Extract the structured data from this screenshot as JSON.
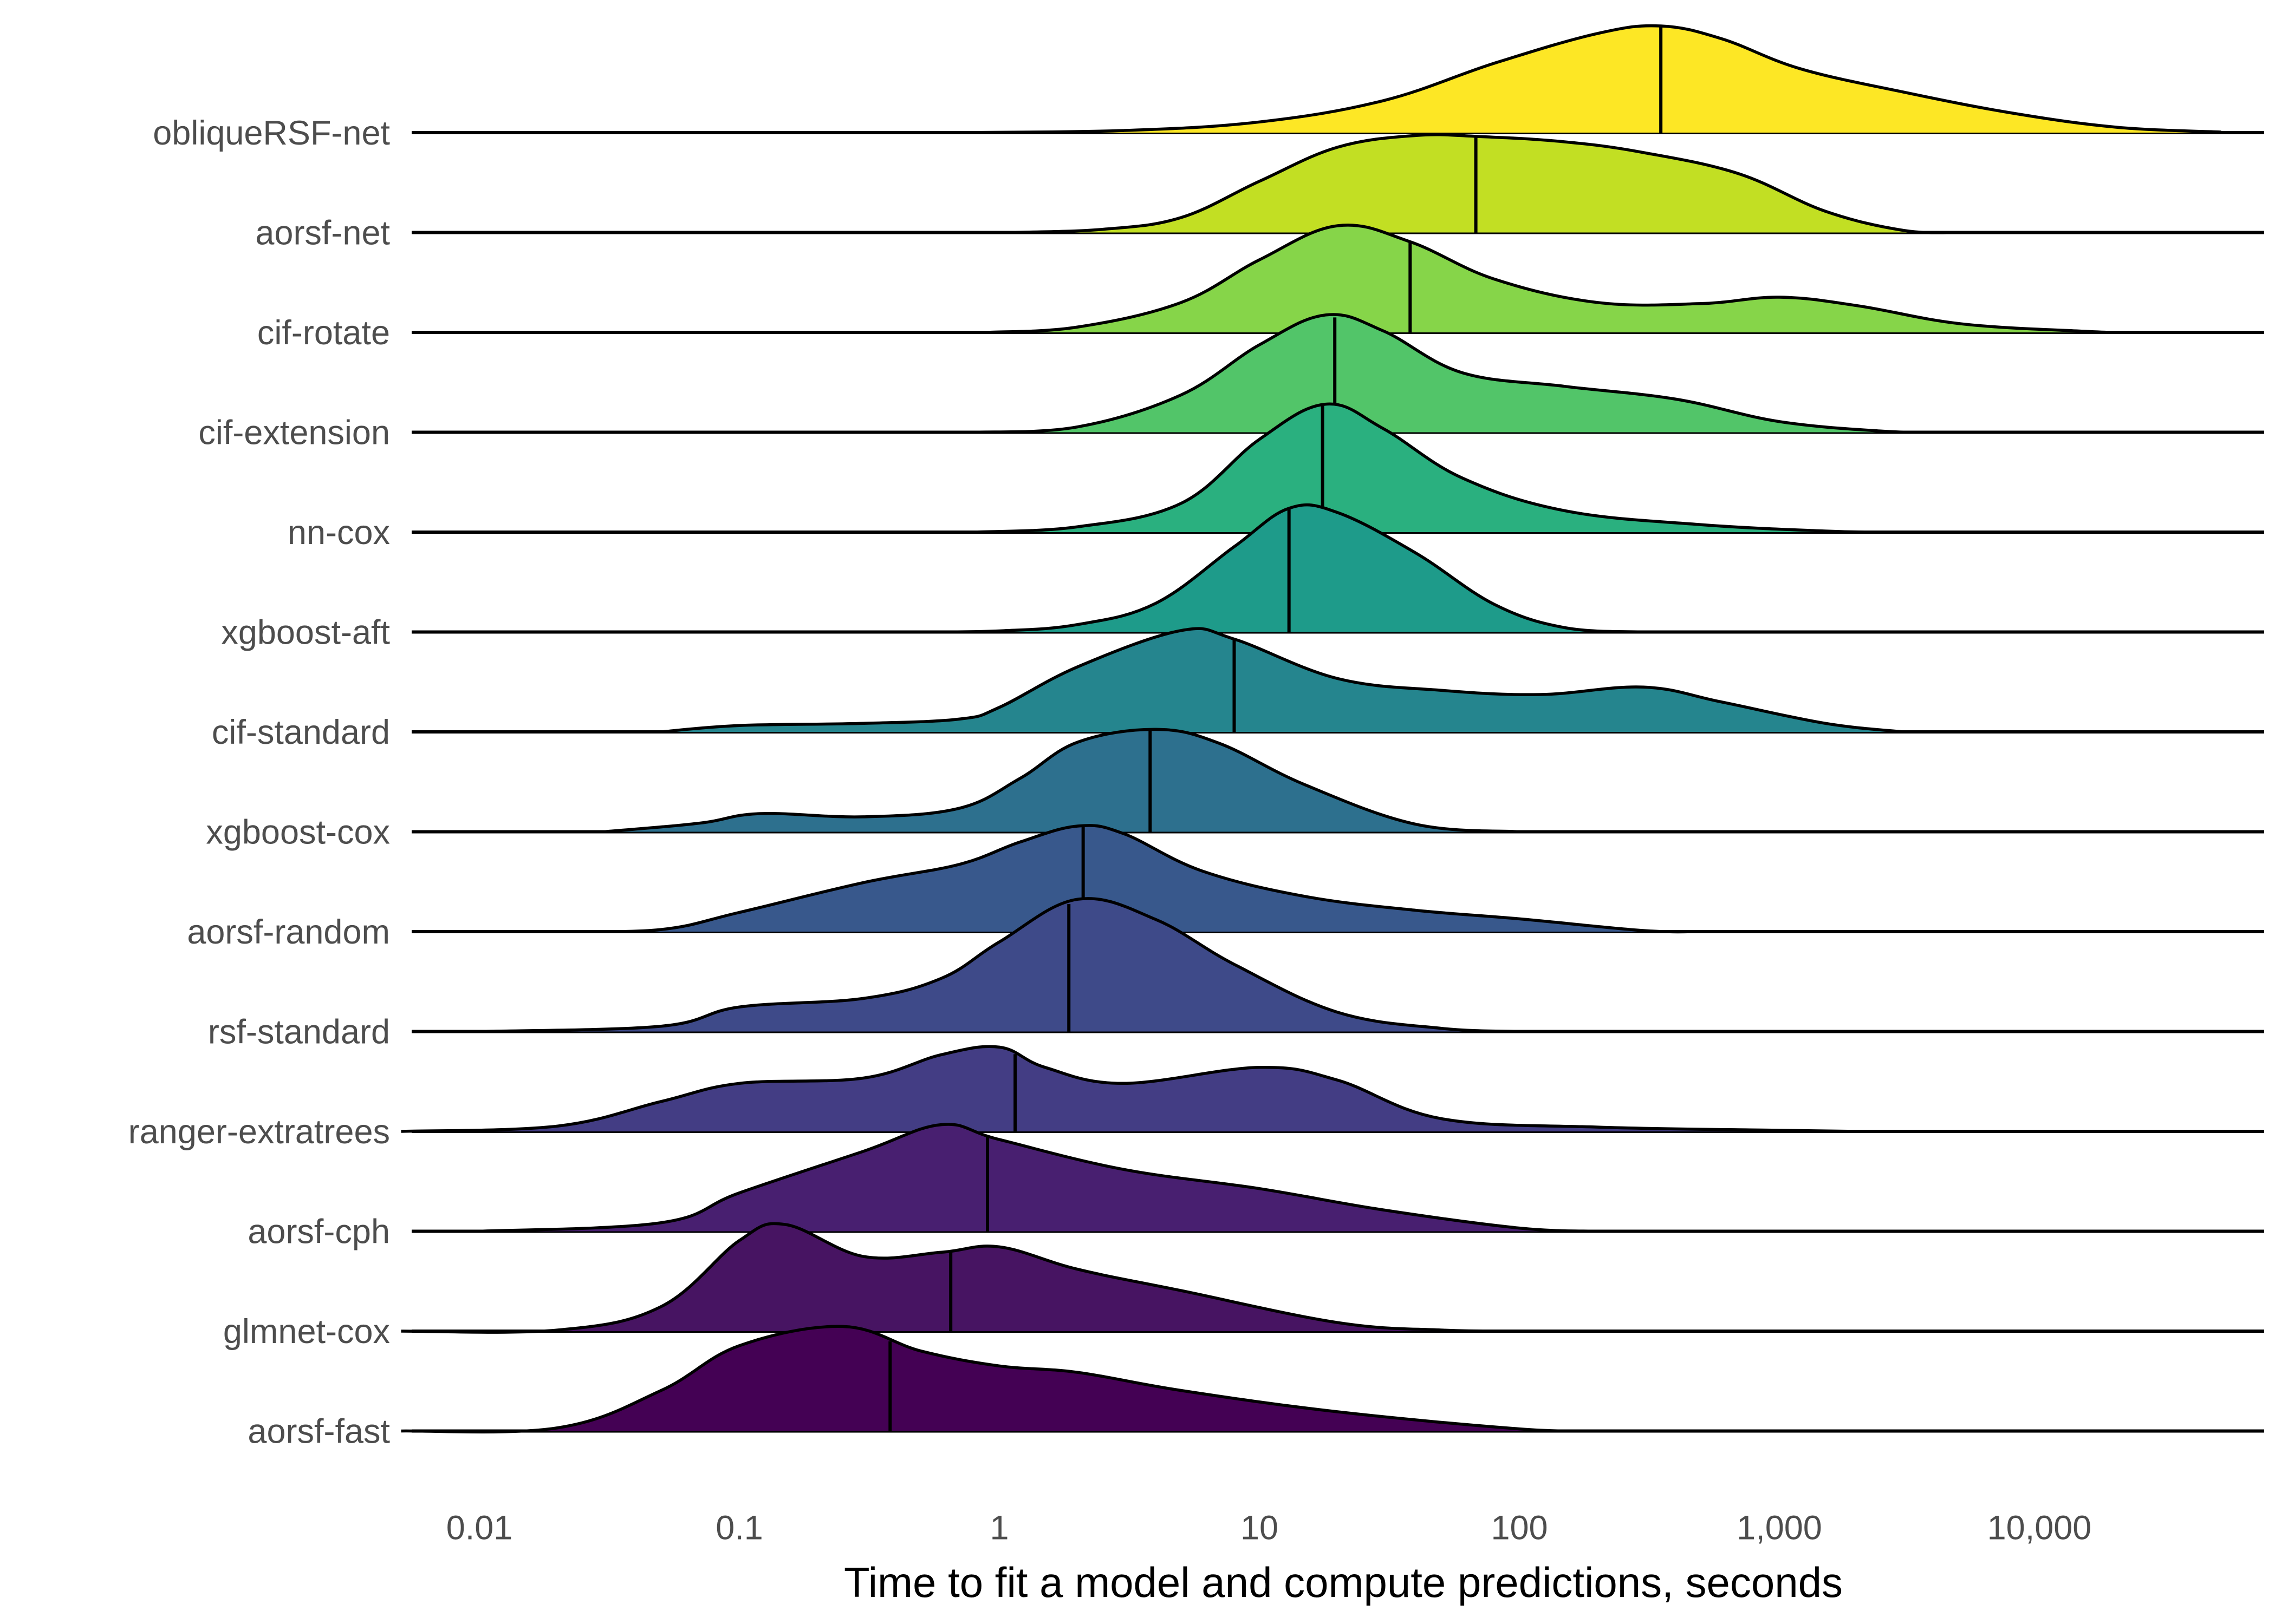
{
  "chart_data": {
    "type": "ridgeline",
    "title": "",
    "xlabel": "Time to fit a model and compute predictions, seconds",
    "ylabel": "",
    "x_scale": "log10",
    "xlim": [
      0.0045,
      70000
    ],
    "x_ticks": [
      {
        "value": 0.01,
        "label": "0.01"
      },
      {
        "value": 0.1,
        "label": "0.1"
      },
      {
        "value": 1,
        "label": "1"
      },
      {
        "value": 10,
        "label": "10"
      },
      {
        "value": 100,
        "label": "100"
      },
      {
        "value": 1000,
        "label": "1,000"
      },
      {
        "value": 10000,
        "label": "10,000"
      }
    ],
    "grid": false,
    "legend": "none",
    "series": [
      {
        "name": "obliqueRSF-net",
        "color": "#FDE725",
        "median": 350,
        "density": [
          [
            0.7,
            0
          ],
          [
            3,
            0.02
          ],
          [
            10,
            0.1
          ],
          [
            30,
            0.3
          ],
          [
            80,
            0.65
          ],
          [
            200,
            0.93
          ],
          [
            350,
            1.0
          ],
          [
            600,
            0.88
          ],
          [
            1200,
            0.6
          ],
          [
            3000,
            0.38
          ],
          [
            8000,
            0.18
          ],
          [
            20000,
            0.05
          ],
          [
            50000,
            0.005
          ]
        ]
      },
      {
        "name": "aorsf-net",
        "color": "#C2DF23",
        "median": 68,
        "density": [
          [
            1.1,
            0
          ],
          [
            2.5,
            0.03
          ],
          [
            5,
            0.14
          ],
          [
            10,
            0.48
          ],
          [
            20,
            0.8
          ],
          [
            40,
            0.91
          ],
          [
            70,
            0.9
          ],
          [
            150,
            0.85
          ],
          [
            300,
            0.75
          ],
          [
            700,
            0.55
          ],
          [
            1500,
            0.2
          ],
          [
            3000,
            0.02
          ],
          [
            5000,
            0
          ]
        ]
      },
      {
        "name": "cif-rotate",
        "color": "#86D549",
        "median": 38,
        "density": [
          [
            0.9,
            0
          ],
          [
            2,
            0.05
          ],
          [
            5,
            0.28
          ],
          [
            10,
            0.68
          ],
          [
            20,
            1.0
          ],
          [
            38,
            0.85
          ],
          [
            80,
            0.5
          ],
          [
            200,
            0.28
          ],
          [
            500,
            0.27
          ],
          [
            1000,
            0.33
          ],
          [
            2000,
            0.25
          ],
          [
            5000,
            0.08
          ],
          [
            15000,
            0.01
          ],
          [
            20000,
            0
          ]
        ]
      },
      {
        "name": "cif-extension",
        "color": "#52C569",
        "median": 19.5,
        "density": [
          [
            0.8,
            0
          ],
          [
            2,
            0.05
          ],
          [
            5,
            0.35
          ],
          [
            10,
            0.82
          ],
          [
            18,
            1.1
          ],
          [
            30,
            0.95
          ],
          [
            60,
            0.56
          ],
          [
            150,
            0.43
          ],
          [
            400,
            0.31
          ],
          [
            1000,
            0.1
          ],
          [
            2500,
            0.01
          ],
          [
            4000,
            0
          ]
        ]
      },
      {
        "name": "nn-cox",
        "color": "#2AB07F",
        "median": 17.5,
        "density": [
          [
            0.8,
            0
          ],
          [
            2,
            0.05
          ],
          [
            5,
            0.27
          ],
          [
            10,
            0.87
          ],
          [
            18,
            1.2
          ],
          [
            30,
            0.97
          ],
          [
            60,
            0.51
          ],
          [
            150,
            0.2
          ],
          [
            500,
            0.07
          ],
          [
            1500,
            0.01
          ],
          [
            2500,
            0
          ]
        ]
      },
      {
        "name": "xgboost-aft",
        "color": "#1E9B8A",
        "median": 13,
        "density": [
          [
            0.5,
            0
          ],
          [
            1,
            0.01
          ],
          [
            2,
            0.07
          ],
          [
            4,
            0.27
          ],
          [
            8,
            0.8
          ],
          [
            13,
            1.16
          ],
          [
            20,
            1.12
          ],
          [
            40,
            0.74
          ],
          [
            80,
            0.26
          ],
          [
            150,
            0.04
          ],
          [
            300,
            0
          ]
        ]
      },
      {
        "name": "cif-standard",
        "color": "#25858E",
        "median": 8,
        "density": [
          [
            0.05,
            0
          ],
          [
            0.1,
            0.06
          ],
          [
            0.3,
            0.08
          ],
          [
            0.7,
            0.12
          ],
          [
            1,
            0.23
          ],
          [
            2,
            0.61
          ],
          [
            5,
            0.95
          ],
          [
            8,
            0.87
          ],
          [
            20,
            0.5
          ],
          [
            50,
            0.39
          ],
          [
            120,
            0.35
          ],
          [
            300,
            0.42
          ],
          [
            600,
            0.28
          ],
          [
            1500,
            0.08
          ],
          [
            3000,
            0
          ]
        ]
      },
      {
        "name": "xgboost-cox",
        "color": "#2D708E",
        "median": 3.8,
        "density": [
          [
            0.03,
            0
          ],
          [
            0.07,
            0.08
          ],
          [
            0.12,
            0.17
          ],
          [
            0.3,
            0.14
          ],
          [
            0.7,
            0.22
          ],
          [
            1.2,
            0.5
          ],
          [
            2,
            0.84
          ],
          [
            4,
            0.96
          ],
          [
            7,
            0.83
          ],
          [
            15,
            0.44
          ],
          [
            40,
            0.07
          ],
          [
            100,
            0
          ]
        ]
      },
      {
        "name": "aorsf-random",
        "color": "#38588C",
        "median": 2.1,
        "density": [
          [
            0.02,
            0
          ],
          [
            0.05,
            0.02
          ],
          [
            0.1,
            0.18
          ],
          [
            0.3,
            0.46
          ],
          [
            0.7,
            0.63
          ],
          [
            1.2,
            0.84
          ],
          [
            2,
            0.99
          ],
          [
            3,
            0.92
          ],
          [
            6,
            0.57
          ],
          [
            15,
            0.33
          ],
          [
            40,
            0.2
          ],
          [
            100,
            0.12
          ],
          [
            300,
            0.01
          ],
          [
            500,
            0
          ]
        ]
      },
      {
        "name": "rsf-standard",
        "color": "#3E4A89",
        "median": 1.85,
        "density": [
          [
            0.01,
            0
          ],
          [
            0.05,
            0.05
          ],
          [
            0.1,
            0.23
          ],
          [
            0.3,
            0.31
          ],
          [
            0.6,
            0.5
          ],
          [
            1,
            0.84
          ],
          [
            2,
            1.24
          ],
          [
            4,
            1.05
          ],
          [
            8,
            0.63
          ],
          [
            20,
            0.18
          ],
          [
            50,
            0.03
          ],
          [
            100,
            0
          ]
        ]
      },
      {
        "name": "ranger-extratrees",
        "color": "#433D84",
        "median": 1.15,
        "density": [
          [
            0.005,
            0
          ],
          [
            0.02,
            0.05
          ],
          [
            0.05,
            0.28
          ],
          [
            0.1,
            0.45
          ],
          [
            0.3,
            0.5
          ],
          [
            0.6,
            0.72
          ],
          [
            1,
            0.79
          ],
          [
            1.5,
            0.6
          ],
          [
            3,
            0.45
          ],
          [
            10,
            0.6
          ],
          [
            20,
            0.48
          ],
          [
            50,
            0.12
          ],
          [
            200,
            0.04
          ],
          [
            1000,
            0.01
          ],
          [
            2000,
            0
          ]
        ]
      },
      {
        "name": "aorsf-cph",
        "color": "#481F70",
        "median": 0.9,
        "density": [
          [
            0.01,
            0
          ],
          [
            0.05,
            0.08
          ],
          [
            0.1,
            0.36
          ],
          [
            0.3,
            0.75
          ],
          [
            0.6,
            1.0
          ],
          [
            1,
            0.86
          ],
          [
            3,
            0.58
          ],
          [
            10,
            0.4
          ],
          [
            30,
            0.2
          ],
          [
            100,
            0.03
          ],
          [
            200,
            0
          ]
        ]
      },
      {
        "name": "glmnet-cox",
        "color": "#471462",
        "median": 0.65,
        "density": [
          [
            0.005,
            0
          ],
          [
            0.02,
            0.01
          ],
          [
            0.05,
            0.23
          ],
          [
            0.1,
            0.85
          ],
          [
            0.15,
            1.0
          ],
          [
            0.3,
            0.7
          ],
          [
            0.6,
            0.74
          ],
          [
            1,
            0.79
          ],
          [
            2,
            0.58
          ],
          [
            5,
            0.38
          ],
          [
            20,
            0.08
          ],
          [
            50,
            0.01
          ],
          [
            100,
            0
          ]
        ]
      },
      {
        "name": "aorsf-fast",
        "color": "#440154",
        "median": 0.38,
        "density": [
          [
            0.005,
            0
          ],
          [
            0.02,
            0.03
          ],
          [
            0.05,
            0.38
          ],
          [
            0.1,
            0.8
          ],
          [
            0.25,
            0.98
          ],
          [
            0.5,
            0.75
          ],
          [
            1,
            0.61
          ],
          [
            2,
            0.55
          ],
          [
            5,
            0.38
          ],
          [
            20,
            0.18
          ],
          [
            100,
            0.02
          ],
          [
            200,
            0
          ]
        ]
      }
    ]
  }
}
